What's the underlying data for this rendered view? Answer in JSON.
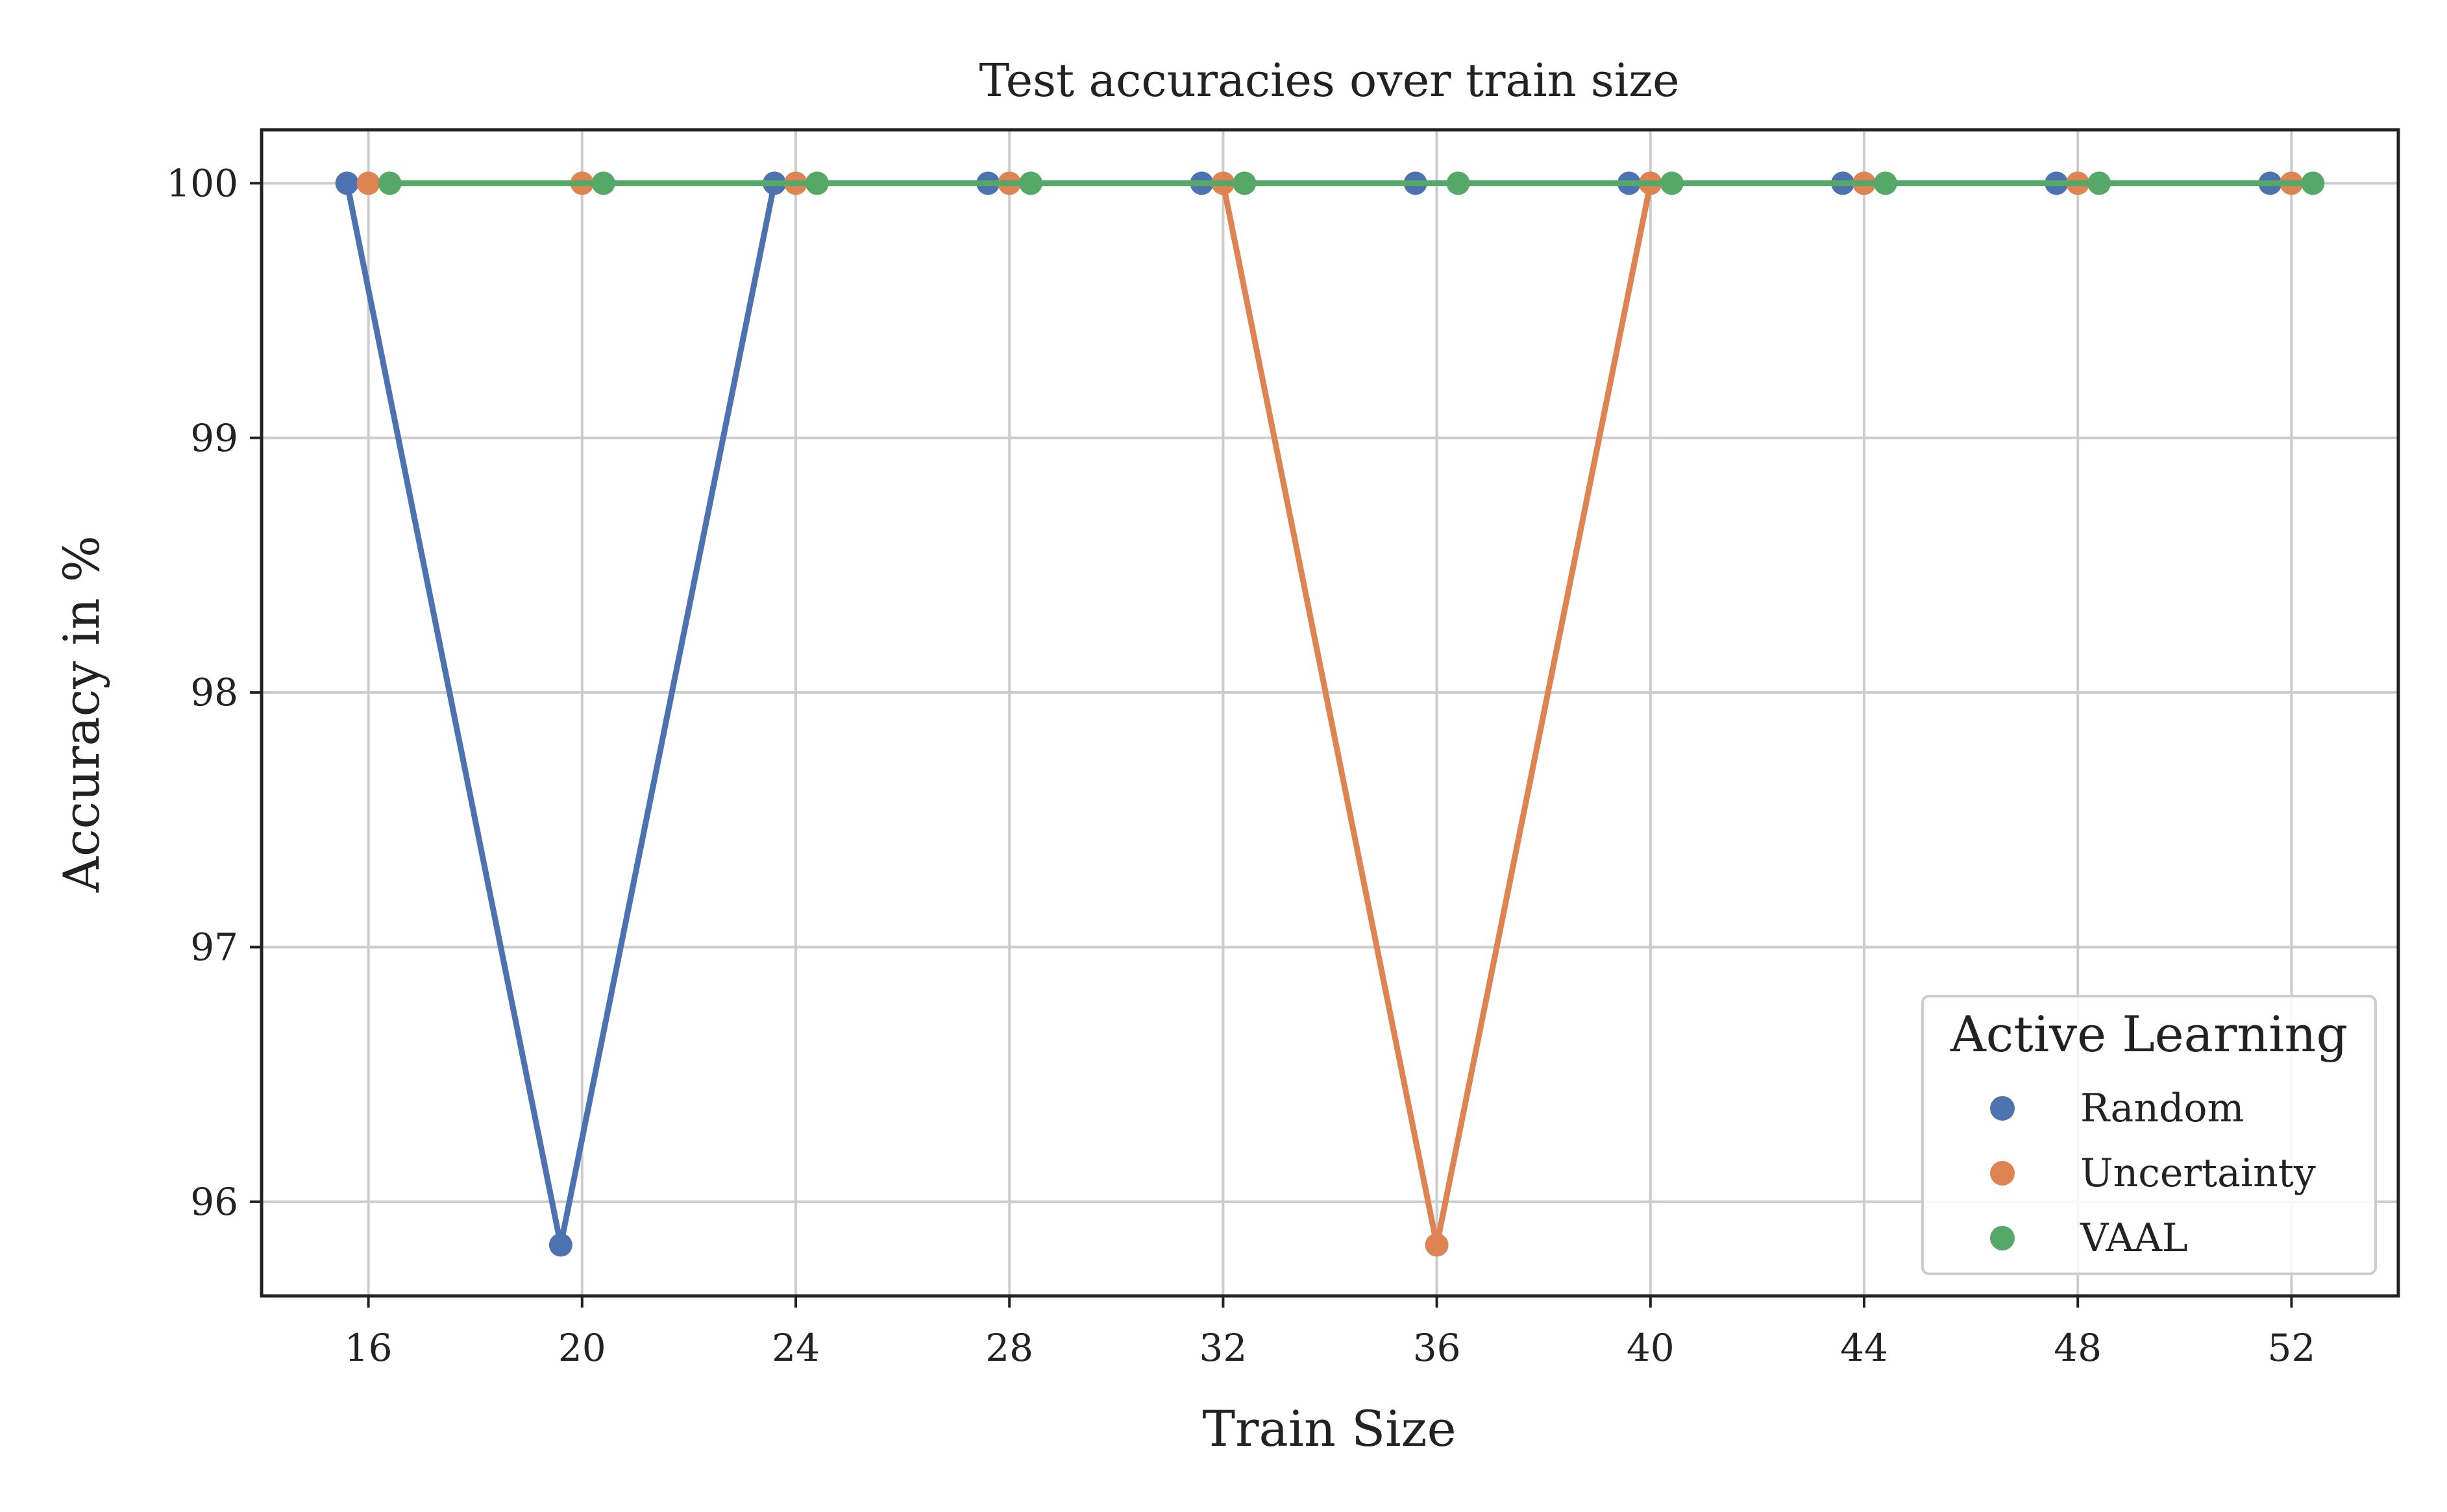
{
  "chart_data": {
    "type": "line",
    "title": "Test accuracies over train size",
    "xlabel": "Train Size",
    "ylabel": "Accuracy in %",
    "xlim": [
      14,
      54
    ],
    "ylim": [
      95.63,
      100.21
    ],
    "xticks": [
      16,
      20,
      24,
      28,
      32,
      36,
      40,
      44,
      48,
      52
    ],
    "yticks": [
      96,
      97,
      98,
      99,
      100
    ],
    "grid": true,
    "legend": {
      "title": "Active Learning",
      "placement": "lower-right"
    },
    "series": [
      {
        "name": "Random",
        "color": "#4c72b0",
        "x": [
          15.6,
          19.6,
          23.6,
          27.6,
          31.6,
          35.6,
          39.6,
          43.6,
          47.6,
          51.6
        ],
        "y": [
          100,
          95.83,
          100,
          100,
          100,
          100,
          100,
          100,
          100,
          100
        ]
      },
      {
        "name": "Uncertainty",
        "color": "#dd8452",
        "x": [
          16.0,
          20.0,
          24.0,
          28.0,
          32.0,
          36.0,
          40.0,
          44.0,
          48.0,
          52.0
        ],
        "y": [
          100,
          100,
          100,
          100,
          100,
          95.83,
          100,
          100,
          100,
          100
        ]
      },
      {
        "name": "VAAL",
        "color": "#55a868",
        "x": [
          16.4,
          20.4,
          24.4,
          28.4,
          32.4,
          36.4,
          40.4,
          44.4,
          48.4,
          52.4
        ],
        "y": [
          100,
          100,
          100,
          100,
          100,
          100,
          100,
          100,
          100,
          100
        ]
      }
    ]
  }
}
